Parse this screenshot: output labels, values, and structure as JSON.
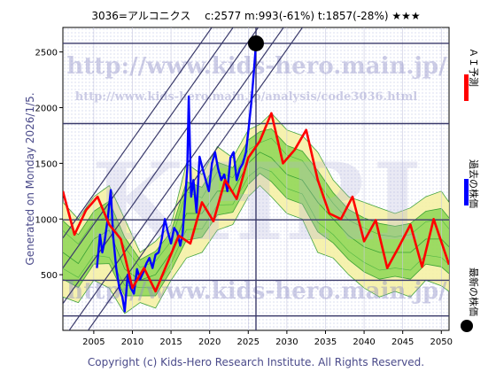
{
  "header": {
    "title": "3036=アルコニクス　 c:2577  m:993(-61%)  t:1857(-28%)  ★★★"
  },
  "side_label": "Generated on Monday 2026/1/5.",
  "copyright": "Copyright (c) Kids-Hero Research Institute. All Rights Reserved.",
  "watermarks": {
    "url_main": "http://www.kids-hero.main.jp/",
    "url_analysis": "http://www.kids-hero.main.jp/analysis/code3036.html",
    "url_bottom": "http://www.kids-hero.main.jp/",
    "logo": "KHRI"
  },
  "legend": [
    {
      "label": "ＡＩ予測",
      "color": "#ff0000"
    },
    {
      "label": "過去の株価",
      "color": "#0000ff"
    },
    {
      "label": "最新の株価",
      "color": "#000000"
    }
  ],
  "colors": {
    "prediction": "#ff0000",
    "history": "#0000ff",
    "latest_marker": "#000000",
    "band_green": "#7fd34a",
    "band_yellow": "#f4f0a0",
    "ref_lines": "#3a3a6a"
  },
  "chart_data": {
    "type": "line",
    "title": "3036=アルコニクス　 c:2577  m:993(-61%)  t:1857(-28%)  ★★★",
    "xlim": [
      2001,
      2051
    ],
    "ylim": [
      0,
      2720
    ],
    "x_ticks": [
      2005,
      2010,
      2015,
      2020,
      2025,
      2030,
      2035,
      2040,
      2045,
      2050
    ],
    "y_ticks": [
      500,
      1000,
      1500,
      2000,
      2500
    ],
    "horizontal_lines": [
      2577,
      1857,
      993,
      450,
      130
    ],
    "current_year": 2026,
    "latest_point": {
      "x": 2026,
      "y": 2577
    },
    "parallel_lines": [
      {
        "x1": 2001,
        "y1": -320,
        "x2": 2026,
        "y2": 2130
      },
      {
        "x1": 2001,
        "y1": -80,
        "x2": 2026,
        "y2": 2370
      },
      {
        "x1": 2001,
        "y1": 240,
        "x2": 2026,
        "y2": 2690
      },
      {
        "x1": 2001,
        "y1": 560,
        "x2": 2026,
        "y2": 3010
      },
      {
        "x1": 2001,
        "y1": 830,
        "x2": 2026,
        "y2": 3280
      }
    ],
    "series": [
      {
        "name": "過去の株価",
        "x": [
          2005.4,
          2005.8,
          2006.1,
          2006.4,
          2006.8,
          2007.2,
          2007.5,
          2007.9,
          2008.3,
          2008.7,
          2009.0,
          2009.4,
          2009.8,
          2010.2,
          2010.6,
          2011.0,
          2011.4,
          2011.8,
          2012.2,
          2012.6,
          2013.0,
          2013.4,
          2013.8,
          2014.2,
          2014.6,
          2015.0,
          2015.4,
          2015.8,
          2016.2,
          2016.5,
          2016.8,
          2017.1,
          2017.3,
          2017.6,
          2017.9,
          2018.3,
          2018.7,
          2019.1,
          2019.5,
          2019.9,
          2020.3,
          2020.7,
          2021.1,
          2021.5,
          2021.9,
          2022.3,
          2022.7,
          2023.1,
          2023.5,
          2023.9,
          2024.3,
          2024.7,
          2025.1,
          2025.4,
          2025.7,
          2026.0
        ],
        "y": [
          560,
          860,
          700,
          800,
          1000,
          1260,
          850,
          560,
          380,
          300,
          170,
          500,
          380,
          330,
          550,
          460,
          520,
          600,
          650,
          560,
          680,
          700,
          820,
          1000,
          880,
          780,
          920,
          880,
          760,
          870,
          1150,
          1450,
          2100,
          1200,
          1350,
          1060,
          1560,
          1450,
          1350,
          1250,
          1500,
          1600,
          1450,
          1350,
          1400,
          1250,
          1550,
          1600,
          1350,
          1450,
          1500,
          1600,
          1850,
          2050,
          2300,
          2577
        ]
      },
      {
        "name": "ＡＩ予測",
        "x": [
          2001.0,
          2002.5,
          2004.0,
          2005.5,
          2007.0,
          2008.5,
          2010.0,
          2011.5,
          2013.0,
          2014.5,
          2016.0,
          2017.5,
          2019.0,
          2020.5,
          2022.0,
          2023.5,
          2025.0,
          2026.5,
          2028.0,
          2029.5,
          2031.0,
          2032.5,
          2034.0,
          2035.5,
          2037.0,
          2038.5,
          2040.0,
          2041.5,
          2043.0,
          2044.5,
          2046.0,
          2047.5,
          2049.0,
          2051.0
        ],
        "y": [
          1250,
          860,
          1080,
          1200,
          950,
          820,
          380,
          560,
          350,
          600,
          850,
          780,
          1150,
          980,
          1350,
          1180,
          1550,
          1700,
          1950,
          1500,
          1620,
          1800,
          1350,
          1050,
          1000,
          1200,
          800,
          990,
          560,
          750,
          950,
          570,
          1000,
          590
        ]
      }
    ],
    "band_x": [
      2001.0,
      2003.0,
      2005.0,
      2007.0,
      2009.0,
      2011.0,
      2013.0,
      2015.0,
      2017.0,
      2019.0,
      2021.0,
      2023.0,
      2025.0,
      2026.5,
      2028.0,
      2030.0,
      2032.0,
      2034.0,
      2036.0,
      2038.0,
      2040.0,
      2042.0,
      2044.0,
      2046.0,
      2048.0,
      2050.0,
      2051.0
    ],
    "band_upper": [
      1150,
      1000,
      1200,
      1300,
      1000,
      700,
      800,
      950,
      1500,
      1400,
      1650,
      1550,
      1800,
      1850,
      1950,
      1800,
      1750,
      1600,
      1350,
      1200,
      1150,
      1100,
      1050,
      1100,
      1200,
      1250,
      1150
    ],
    "band_lower": [
      300,
      250,
      450,
      380,
      150,
      250,
      200,
      450,
      650,
      700,
      900,
      950,
      1200,
      1300,
      1200,
      1050,
      1000,
      700,
      650,
      500,
      380,
      300,
      350,
      300,
      450,
      400,
      350
    ],
    "band_mid": [
      700,
      600,
      820,
      900,
      550,
      450,
      500,
      700,
      1050,
      1050,
      1250,
      1250,
      1500,
      1600,
      1550,
      1400,
      1350,
      1150,
      1000,
      850,
      750,
      700,
      700,
      700,
      820,
      820,
      750
    ]
  }
}
